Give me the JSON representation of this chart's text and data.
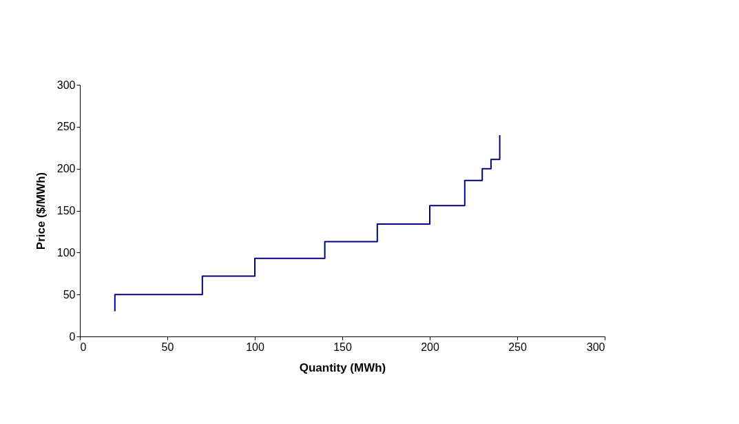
{
  "chart_data": {
    "type": "step",
    "xlabel": "Quantity (MWh)",
    "ylabel": "Price ($/MWh)",
    "series": [
      {
        "color": "#000080",
        "x": [
          20,
          20,
          70,
          100,
          140,
          170,
          200,
          220,
          230,
          235,
          240
        ],
        "values": [
          30,
          50,
          72,
          93,
          113,
          134,
          156,
          186,
          200,
          211,
          240
        ]
      }
    ],
    "xlim": [
      0,
      300
    ],
    "xticks": [
      0,
      50,
      100,
      150,
      200,
      250,
      300
    ],
    "ylim": [
      0,
      300
    ],
    "yticks": [
      0,
      50,
      100,
      150,
      200,
      250,
      300
    ],
    "grid": false,
    "marker": "none",
    "line_style": "solid"
  }
}
